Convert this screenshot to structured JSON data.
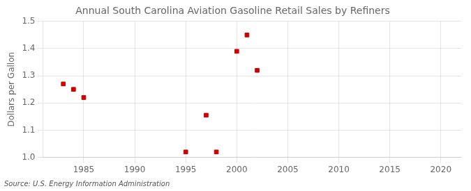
{
  "chart_data": {
    "type": "scatter",
    "title": "Annual South Carolina Aviation Gasoline Retail Sales by Refiners",
    "ylabel": "Dollars per Gallon",
    "annotations": [
      "Source: U.S. Energy Information Administration"
    ],
    "x": [
      1983,
      1984,
      1985,
      1995,
      1997,
      1998,
      2000,
      2001,
      2002
    ],
    "values": [
      1.27,
      1.25,
      1.22,
      1.02,
      1.155,
      1.02,
      1.39,
      1.45,
      1.32
    ],
    "color": "#cc0000",
    "marker": "square",
    "xlim": [
      1981,
      2022
    ],
    "ylim": [
      1.0,
      1.5
    ],
    "xticks": [
      1985,
      1990,
      1995,
      2000,
      2005,
      2010,
      2015,
      2020
    ],
    "yticks": [
      {
        "value": 1.0,
        "label": "1.0"
      },
      1.1,
      1.2,
      1.3,
      1.4,
      {
        "value": 1.5,
        "label": "1.5"
      }
    ],
    "grid": true
  }
}
